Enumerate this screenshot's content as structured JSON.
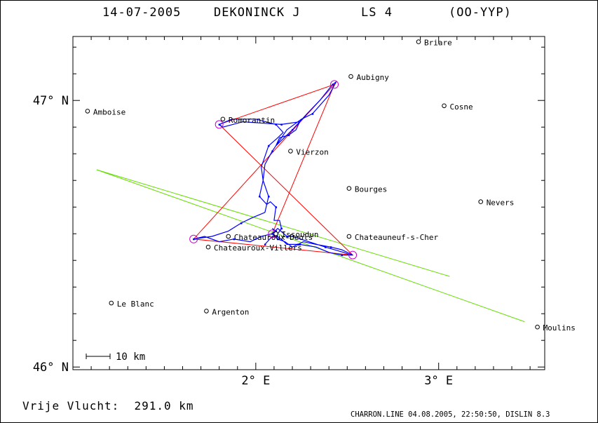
{
  "header": {
    "date": "14-07-2005",
    "pilot": "DEKONINCK J",
    "glider_class": "LS 4",
    "registration": "(OO-YYP)"
  },
  "axes": {
    "y_labels": [
      {
        "lat": 47,
        "text": "47° N"
      },
      {
        "lat": 46,
        "text": "46° N"
      }
    ],
    "x_labels": [
      {
        "lon": 2,
        "text": "2° E"
      },
      {
        "lon": 3,
        "text": "3° E"
      }
    ],
    "lon_range": [
      1.0,
      3.58
    ],
    "lat_range": [
      45.99,
      47.24
    ]
  },
  "scale_bar": {
    "label": "10 km"
  },
  "colors": {
    "task": "#ff0000",
    "track": "#0000ff",
    "turnpoint": "#cc00cc",
    "extra_lines": "#66dd00"
  },
  "towns": [
    {
      "name": "Briare",
      "lon": 2.89,
      "lat": 47.22
    },
    {
      "name": "Aubigny",
      "lon": 2.52,
      "lat": 47.09
    },
    {
      "name": "Amboise",
      "lon": 1.08,
      "lat": 46.96
    },
    {
      "name": "Cosne",
      "lon": 3.03,
      "lat": 46.98
    },
    {
      "name": "Romorantin",
      "lon": 1.82,
      "lat": 46.93
    },
    {
      "name": "Vierzon",
      "lon": 2.19,
      "lat": 46.81
    },
    {
      "name": "Bourges",
      "lon": 2.51,
      "lat": 46.67
    },
    {
      "name": "Nevers",
      "lon": 3.23,
      "lat": 46.62
    },
    {
      "name": "Issoudun",
      "lon": 2.11,
      "lat": 46.5
    },
    {
      "name": "Chateauneuf-s-Cher",
      "lon": 2.51,
      "lat": 46.49
    },
    {
      "name": "Chateauroux-Deols",
      "lon": 1.85,
      "lat": 46.49
    },
    {
      "name": "Chateauroux-Villers",
      "lon": 1.74,
      "lat": 46.45
    },
    {
      "name": "Le Blanc",
      "lon": 1.21,
      "lat": 46.24
    },
    {
      "name": "Argenton",
      "lon": 1.73,
      "lat": 46.21
    },
    {
      "name": "Moulins",
      "lon": 3.54,
      "lat": 46.15
    }
  ],
  "task_route": [
    {
      "lon": 2.09,
      "lat": 46.5
    },
    {
      "lon": 2.43,
      "lat": 47.06
    },
    {
      "lon": 1.8,
      "lat": 46.91
    },
    {
      "lon": 2.53,
      "lat": 46.42
    },
    {
      "lon": 1.66,
      "lat": 46.48
    },
    {
      "lon": 2.43,
      "lat": 47.06
    }
  ],
  "turnpoints": [
    {
      "lon": 2.43,
      "lat": 47.06
    },
    {
      "lon": 1.8,
      "lat": 46.91
    },
    {
      "lon": 2.53,
      "lat": 46.42
    },
    {
      "lon": 1.66,
      "lat": 46.48
    },
    {
      "lon": 2.09,
      "lat": 46.5
    }
  ],
  "track": [
    {
      "lon": 2.05,
      "lat": 46.46
    },
    {
      "lon": 2.09,
      "lat": 46.49
    },
    {
      "lon": 2.12,
      "lat": 46.49
    },
    {
      "lon": 2.11,
      "lat": 46.51
    },
    {
      "lon": 2.09,
      "lat": 46.52
    },
    {
      "lon": 2.12,
      "lat": 46.5
    },
    {
      "lon": 2.14,
      "lat": 46.52
    },
    {
      "lon": 2.13,
      "lat": 46.55
    },
    {
      "lon": 2.1,
      "lat": 46.55
    },
    {
      "lon": 2.11,
      "lat": 46.6
    },
    {
      "lon": 2.08,
      "lat": 46.62
    },
    {
      "lon": 2.06,
      "lat": 46.61
    },
    {
      "lon": 2.02,
      "lat": 46.64
    },
    {
      "lon": 2.04,
      "lat": 46.7
    },
    {
      "lon": 2.03,
      "lat": 46.75
    },
    {
      "lon": 2.07,
      "lat": 46.83
    },
    {
      "lon": 2.12,
      "lat": 46.86
    },
    {
      "lon": 2.15,
      "lat": 46.88
    },
    {
      "lon": 2.11,
      "lat": 46.91
    },
    {
      "lon": 2.0,
      "lat": 46.93
    },
    {
      "lon": 1.87,
      "lat": 46.93
    },
    {
      "lon": 1.8,
      "lat": 46.91
    },
    {
      "lon": 1.82,
      "lat": 46.9
    },
    {
      "lon": 1.93,
      "lat": 46.92
    },
    {
      "lon": 2.14,
      "lat": 46.91
    },
    {
      "lon": 2.24,
      "lat": 46.92
    },
    {
      "lon": 2.22,
      "lat": 46.89
    },
    {
      "lon": 2.18,
      "lat": 46.87
    },
    {
      "lon": 2.13,
      "lat": 46.86
    },
    {
      "lon": 2.11,
      "lat": 46.83
    },
    {
      "lon": 2.2,
      "lat": 46.89
    },
    {
      "lon": 2.28,
      "lat": 46.95
    },
    {
      "lon": 2.35,
      "lat": 47.0
    },
    {
      "lon": 2.42,
      "lat": 47.06
    },
    {
      "lon": 2.44,
      "lat": 47.07
    },
    {
      "lon": 2.4,
      "lat": 47.02
    },
    {
      "lon": 2.31,
      "lat": 46.95
    },
    {
      "lon": 2.25,
      "lat": 46.93
    },
    {
      "lon": 2.17,
      "lat": 46.89
    },
    {
      "lon": 2.09,
      "lat": 46.81
    },
    {
      "lon": 2.05,
      "lat": 46.76
    },
    {
      "lon": 2.04,
      "lat": 46.7
    },
    {
      "lon": 2.07,
      "lat": 46.64
    },
    {
      "lon": 2.05,
      "lat": 46.58
    },
    {
      "lon": 1.98,
      "lat": 46.56
    },
    {
      "lon": 1.92,
      "lat": 46.54
    },
    {
      "lon": 1.85,
      "lat": 46.51
    },
    {
      "lon": 1.76,
      "lat": 46.49
    },
    {
      "lon": 1.66,
      "lat": 46.48
    },
    {
      "lon": 1.72,
      "lat": 46.49
    },
    {
      "lon": 1.8,
      "lat": 46.47
    },
    {
      "lon": 1.88,
      "lat": 46.48
    },
    {
      "lon": 1.97,
      "lat": 46.47
    },
    {
      "lon": 2.03,
      "lat": 46.49
    },
    {
      "lon": 2.09,
      "lat": 46.5
    },
    {
      "lon": 2.14,
      "lat": 46.48
    },
    {
      "lon": 2.17,
      "lat": 46.46
    },
    {
      "lon": 2.24,
      "lat": 46.46
    },
    {
      "lon": 2.33,
      "lat": 46.45
    },
    {
      "lon": 2.4,
      "lat": 46.43
    },
    {
      "lon": 2.47,
      "lat": 46.42
    },
    {
      "lon": 2.53,
      "lat": 46.42
    },
    {
      "lon": 2.47,
      "lat": 46.44
    },
    {
      "lon": 2.41,
      "lat": 46.45
    },
    {
      "lon": 2.33,
      "lat": 46.46
    },
    {
      "lon": 2.26,
      "lat": 46.47
    },
    {
      "lon": 2.23,
      "lat": 46.46
    },
    {
      "lon": 2.2,
      "lat": 46.45
    },
    {
      "lon": 2.16,
      "lat": 46.47
    },
    {
      "lon": 2.12,
      "lat": 46.48
    },
    {
      "lon": 2.09,
      "lat": 46.5
    },
    {
      "lon": 2.12,
      "lat": 46.52
    },
    {
      "lon": 2.17,
      "lat": 46.49
    },
    {
      "lon": 2.2,
      "lat": 46.49
    },
    {
      "lon": 2.29,
      "lat": 46.47
    },
    {
      "lon": 2.38,
      "lat": 46.45
    },
    {
      "lon": 2.48,
      "lat": 46.43
    },
    {
      "lon": 2.52,
      "lat": 46.42
    }
  ],
  "extra_lines": [
    [
      {
        "lon": 1.13,
        "lat": 46.74
      },
      {
        "lon": 3.06,
        "lat": 46.34
      }
    ],
    [
      {
        "lon": 1.13,
        "lat": 46.74
      },
      {
        "lon": 3.47,
        "lat": 46.17
      }
    ]
  ],
  "footer": {
    "distance_label": "Vrije Vlucht:",
    "distance_value": "291.0 km",
    "program_info": "CHARRON.LINE 04.08.2005, 22:50:50, DISLIN 8.3"
  }
}
